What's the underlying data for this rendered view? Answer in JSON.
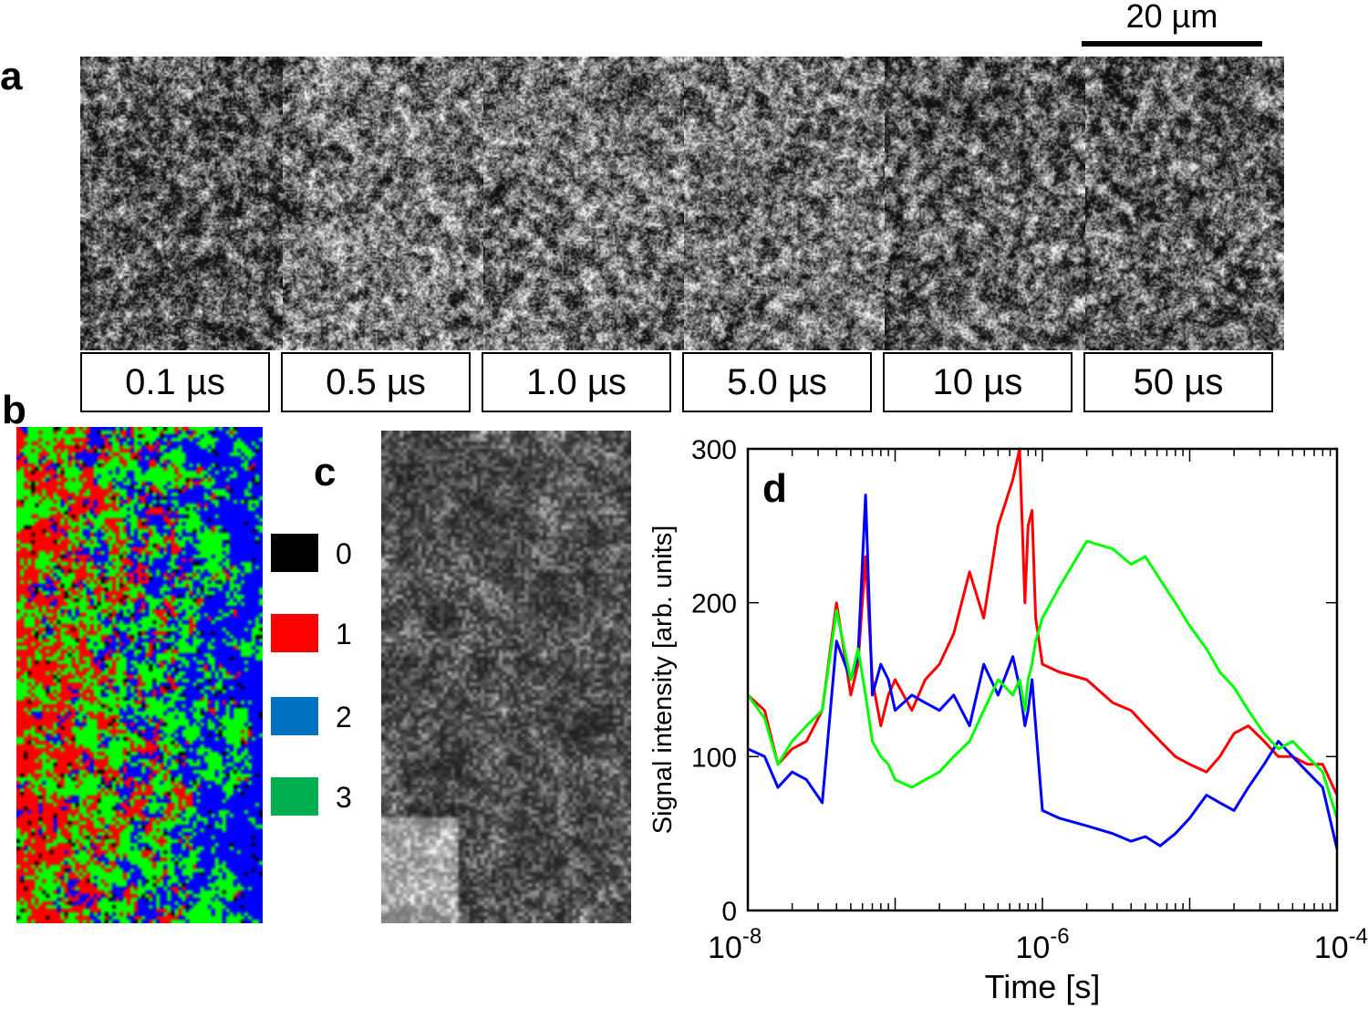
{
  "panels": {
    "a": "a",
    "b": "b",
    "c": "c",
    "d": "d"
  },
  "scale_bar": {
    "label": "20 µm"
  },
  "time_frames": [
    {
      "label": "0.1 µs"
    },
    {
      "label": "0.5 µs"
    },
    {
      "label": "1.0 µs"
    },
    {
      "label": "5.0 µs"
    },
    {
      "label": "10 µs"
    },
    {
      "label": "50 µs"
    }
  ],
  "cluster_legend": [
    {
      "label": "0",
      "color": "#000000"
    },
    {
      "label": "1",
      "color": "#ff0000"
    },
    {
      "label": "2",
      "color": "#0070c0"
    },
    {
      "label": "3",
      "color": "#00b050"
    }
  ],
  "cluster_map_colors": [
    "#000000",
    "#ff0000",
    "#0000ff",
    "#00ff00"
  ],
  "chart_data": {
    "type": "line",
    "title": "",
    "panel_label": "d",
    "xlabel": "Time [s]",
    "ylabel": "Signal intensity [arb. units]",
    "xscale": "log",
    "xlim": [
      1e-08,
      0.0001
    ],
    "ylim": [
      0,
      300
    ],
    "x_ticks": [
      {
        "base": "10",
        "exp": "-8",
        "value": 1e-08
      },
      {
        "base": "10",
        "exp": "-6",
        "value": 1e-06
      },
      {
        "base": "10",
        "exp": "-4",
        "value": 0.0001
      }
    ],
    "y_ticks": [
      {
        "label": "0",
        "value": 0
      },
      {
        "label": "100",
        "value": 100
      },
      {
        "label": "200",
        "value": 200
      },
      {
        "label": "300",
        "value": 300
      }
    ],
    "series": [
      {
        "name": "1",
        "color": "#ff0000",
        "x": [
          1e-08,
          1.3e-08,
          1.6e-08,
          2e-08,
          2.5e-08,
          3.2e-08,
          4e-08,
          5e-08,
          5.6e-08,
          6.3e-08,
          7e-08,
          8e-08,
          9e-08,
          1e-07,
          1.3e-07,
          1.6e-07,
          2e-07,
          2.5e-07,
          3.2e-07,
          4e-07,
          5e-07,
          6.3e-07,
          7e-07,
          7.6e-07,
          8e-07,
          8.5e-07,
          9e-07,
          1e-06,
          1.3e-06,
          2e-06,
          3e-06,
          4e-06,
          5e-06,
          6.3e-06,
          8e-06,
          1e-05,
          1.3e-05,
          1.6e-05,
          2e-05,
          2.5e-05,
          3.2e-05,
          4e-05,
          5e-05,
          6.3e-05,
          8e-05,
          0.0001
        ],
        "values": [
          140,
          130,
          95,
          105,
          110,
          130,
          200,
          140,
          160,
          230,
          150,
          120,
          140,
          150,
          130,
          150,
          160,
          180,
          220,
          190,
          250,
          280,
          300,
          200,
          250,
          260,
          190,
          160,
          155,
          150,
          135,
          130,
          120,
          110,
          100,
          95,
          90,
          100,
          115,
          120,
          110,
          100,
          100,
          95,
          95,
          75
        ]
      },
      {
        "name": "2",
        "color": "#0000ff",
        "x": [
          1e-08,
          1.3e-08,
          1.6e-08,
          2e-08,
          2.5e-08,
          3.2e-08,
          4e-08,
          5e-08,
          5.6e-08,
          6.3e-08,
          7e-08,
          8e-08,
          9e-08,
          1e-07,
          1.3e-07,
          1.6e-07,
          2e-07,
          2.5e-07,
          3.2e-07,
          4e-07,
          5e-07,
          6.3e-07,
          7e-07,
          7.6e-07,
          8e-07,
          8.5e-07,
          9e-07,
          1e-06,
          1.3e-06,
          2e-06,
          3e-06,
          4e-06,
          5e-06,
          6.3e-06,
          8e-06,
          1e-05,
          1.3e-05,
          1.6e-05,
          2e-05,
          2.5e-05,
          3.2e-05,
          4e-05,
          5e-05,
          6.3e-05,
          8e-05,
          0.0001
        ],
        "values": [
          105,
          100,
          80,
          90,
          85,
          70,
          175,
          150,
          165,
          270,
          140,
          160,
          150,
          130,
          140,
          135,
          130,
          140,
          120,
          160,
          140,
          165,
          145,
          120,
          130,
          150,
          120,
          65,
          60,
          55,
          50,
          45,
          48,
          42,
          50,
          60,
          75,
          70,
          65,
          80,
          95,
          110,
          100,
          90,
          80,
          40
        ]
      },
      {
        "name": "3",
        "color": "#00ff00",
        "x": [
          1e-08,
          1.3e-08,
          1.6e-08,
          2e-08,
          2.5e-08,
          3.2e-08,
          4e-08,
          5e-08,
          5.6e-08,
          6.3e-08,
          7e-08,
          8e-08,
          9e-08,
          1e-07,
          1.3e-07,
          1.6e-07,
          2e-07,
          2.5e-07,
          3.2e-07,
          4e-07,
          5e-07,
          6.3e-07,
          7e-07,
          7.6e-07,
          8e-07,
          8.5e-07,
          9e-07,
          1e-06,
          1.3e-06,
          2e-06,
          3e-06,
          4e-06,
          5e-06,
          6.3e-06,
          8e-06,
          1e-05,
          1.3e-05,
          1.6e-05,
          2e-05,
          2.5e-05,
          3.2e-05,
          4e-05,
          5e-05,
          6.3e-05,
          8e-05,
          0.0001
        ],
        "values": [
          140,
          125,
          95,
          110,
          120,
          130,
          195,
          150,
          170,
          140,
          110,
          100,
          95,
          85,
          80,
          85,
          90,
          100,
          110,
          130,
          150,
          140,
          150,
          130,
          150,
          160,
          175,
          190,
          210,
          240,
          235,
          225,
          230,
          215,
          200,
          185,
          170,
          155,
          145,
          130,
          115,
          105,
          110,
          100,
          90,
          60
        ]
      }
    ]
  }
}
